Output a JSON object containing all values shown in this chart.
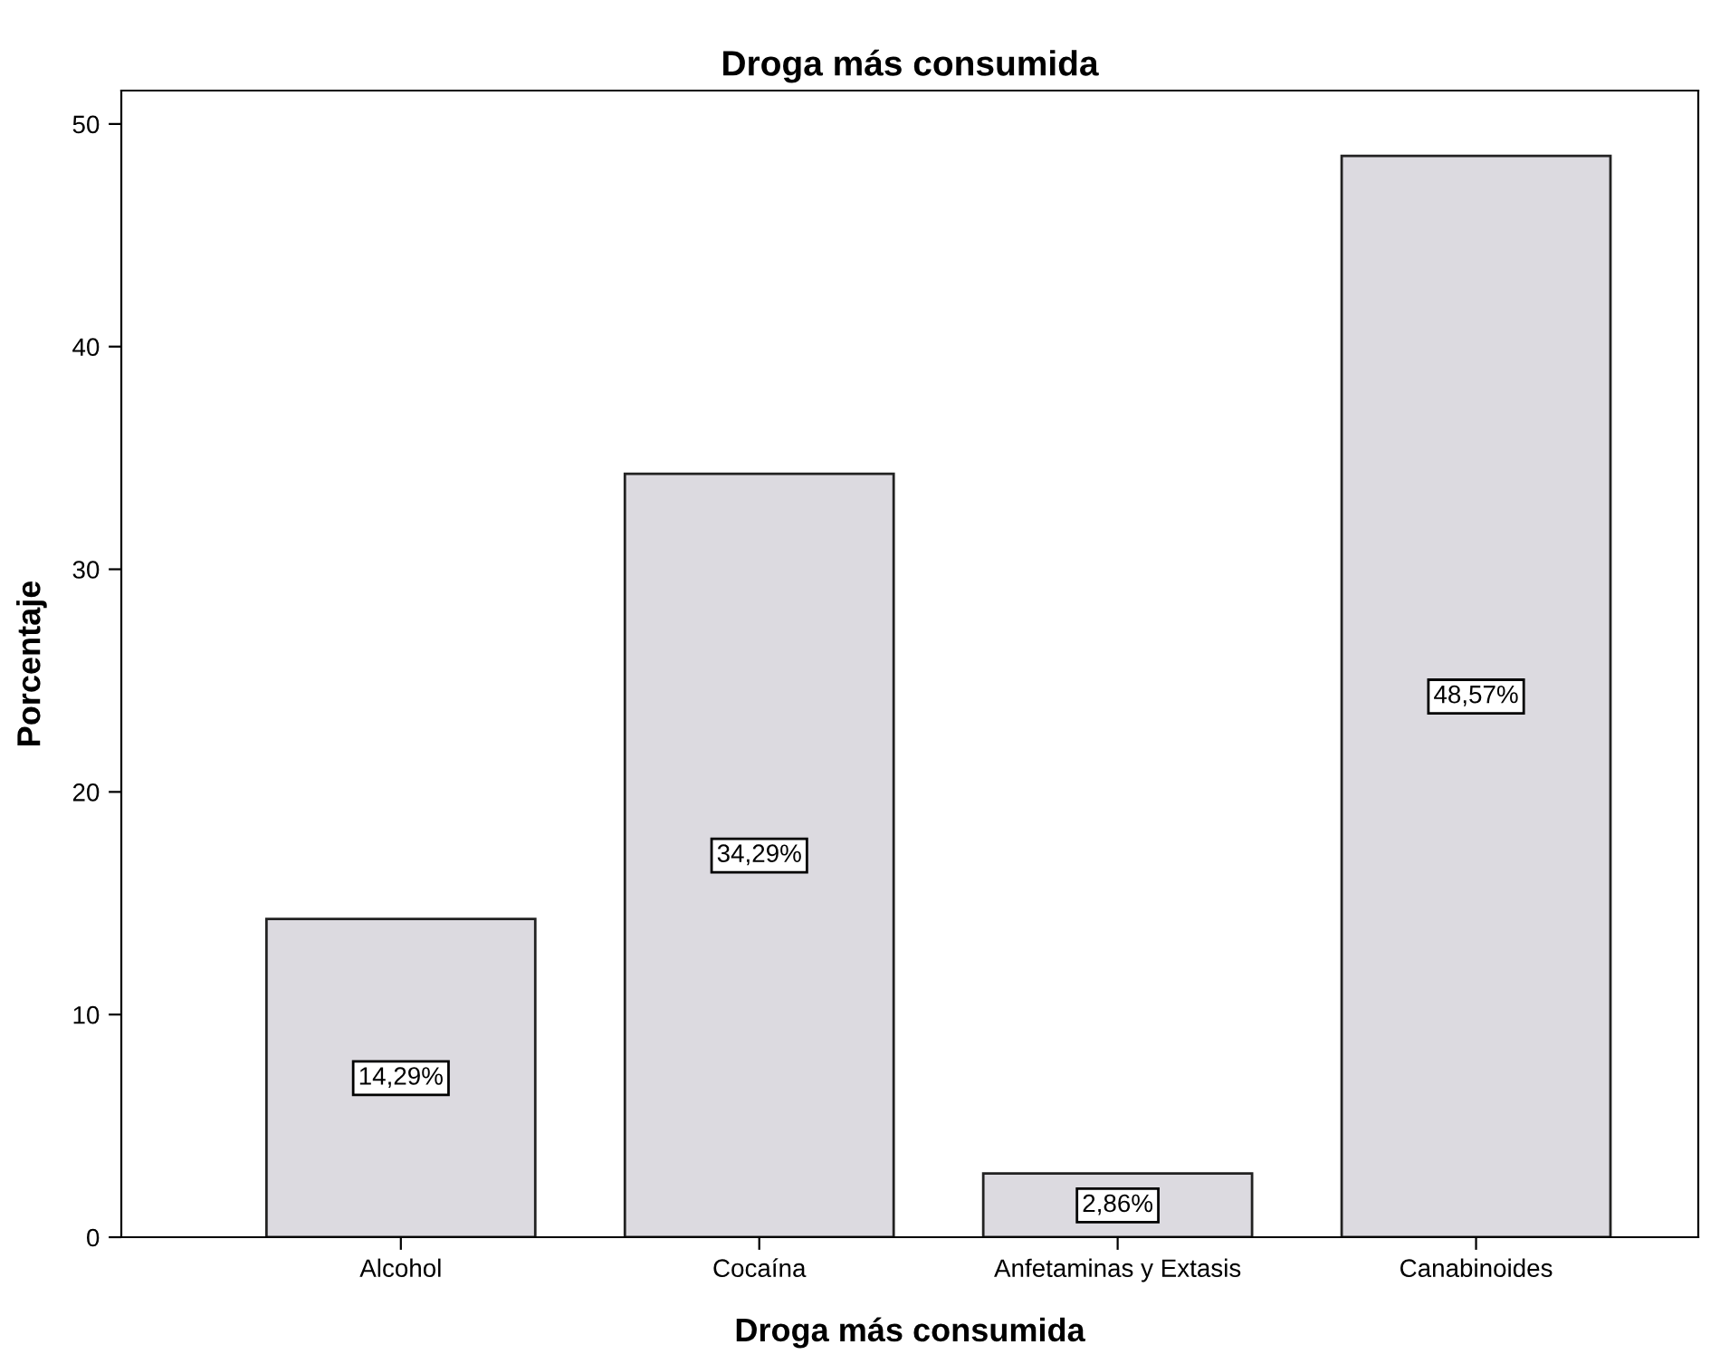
{
  "chart_data": {
    "type": "bar",
    "title": "Droga más consumida",
    "xlabel": "Droga más consumida",
    "ylabel": "Porcentaje",
    "categories": [
      "Alcohol",
      "Cocaína",
      "Anfetaminas y Extasis",
      "Canabinoides"
    ],
    "values": [
      14.29,
      34.29,
      2.86,
      48.57
    ],
    "value_labels": [
      "14,29%",
      "34,29%",
      "2,86%",
      "48,57%"
    ],
    "color": "#dcdae0",
    "ylim": [
      0,
      51.5
    ],
    "yticks": [
      0,
      10,
      20,
      30,
      40,
      50
    ],
    "grid": false,
    "legend": false
  }
}
